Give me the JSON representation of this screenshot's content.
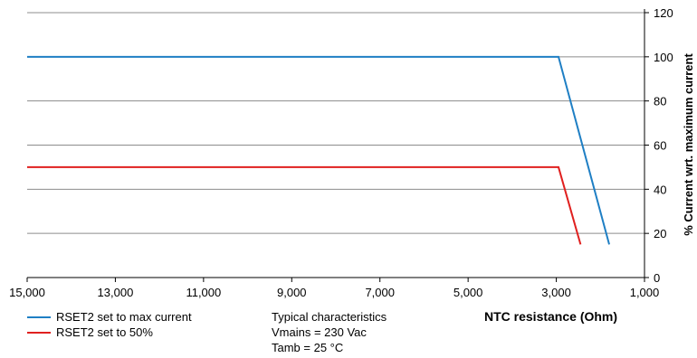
{
  "chart_data": {
    "type": "line",
    "xlabel": "NTC resistance (Ohm)",
    "ylabel": "% Current wrt. maximum current",
    "x_reversed": true,
    "xlim": [
      15000,
      1000
    ],
    "ylim": [
      0,
      120
    ],
    "xticks": [
      15000,
      13000,
      11000,
      9000,
      7000,
      5000,
      3000,
      1000
    ],
    "xtick_labels": [
      "15,000",
      "13,000",
      "11,000",
      "9,000",
      "7,000",
      "5,000",
      "3,000",
      "1,000"
    ],
    "yticks": [
      0,
      20,
      40,
      60,
      80,
      100,
      120
    ],
    "ytick_labels": [
      "0",
      "20",
      "40",
      "60",
      "80",
      "100",
      "120"
    ],
    "grid": "horizontal",
    "yaxis_position": "right",
    "series": [
      {
        "name": "RSET2 set to max current",
        "color": "#1f7fc4",
        "points": [
          [
            15000,
            100
          ],
          [
            2950,
            100
          ],
          [
            1800,
            15
          ]
        ]
      },
      {
        "name": "RSET2 set to 50%",
        "color": "#e0201f",
        "points": [
          [
            15000,
            50
          ],
          [
            2950,
            50
          ],
          [
            2450,
            15
          ]
        ]
      }
    ],
    "annotations": [
      "Typical characteristics",
      "Vmains = 230 Vac",
      "Tamb = 25 °C"
    ]
  }
}
